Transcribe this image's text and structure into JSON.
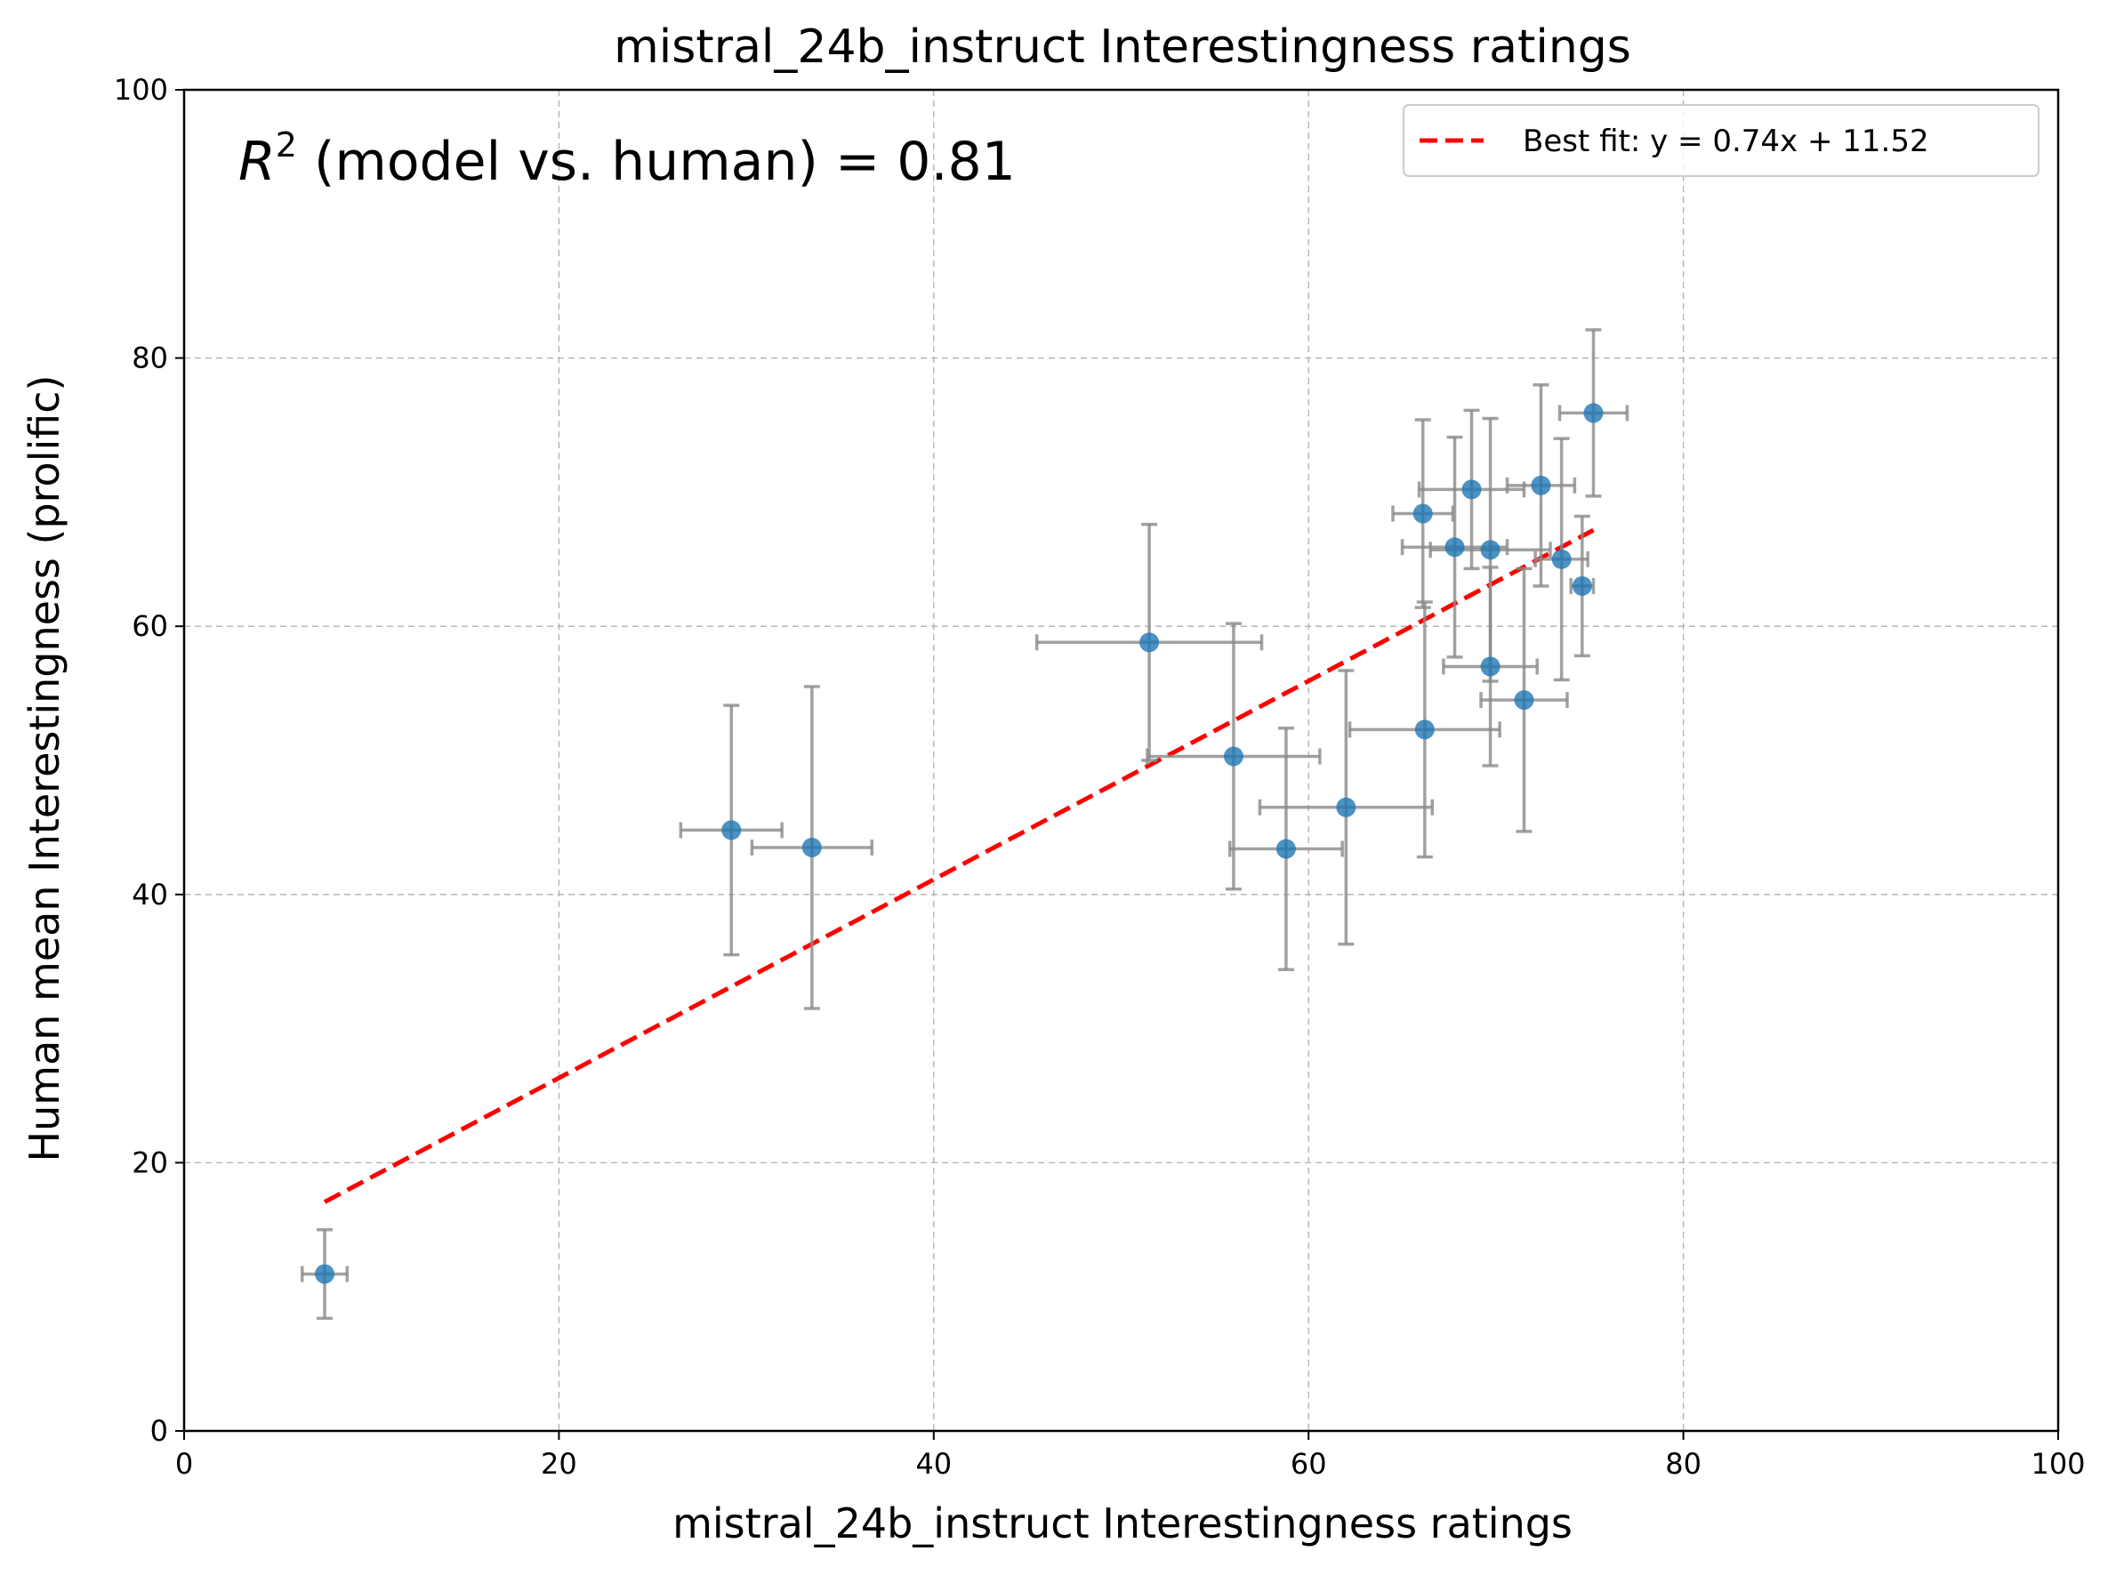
{
  "chart_data": {
    "type": "scatter",
    "title": "mistral_24b_instruct Interestingness ratings",
    "xlabel": "mistral_24b_instruct Interestingness ratings",
    "ylabel": "Human mean Interestingness (prolific)",
    "xlim": [
      0,
      100
    ],
    "ylim": [
      0,
      100
    ],
    "xticks": [
      "0",
      "20",
      "40",
      "60",
      "80",
      "100"
    ],
    "yticks": [
      "0",
      "20",
      "40",
      "60",
      "80",
      "100"
    ],
    "grid": true,
    "annotation": {
      "prefix": "R",
      "sup": "2",
      "suffix": " (model vs. human) = 0.81"
    },
    "legend": {
      "position": "top-right",
      "entries": [
        "Best fit: y = 0.74x + 11.52"
      ]
    },
    "colors": {
      "points": "#1f77b4",
      "error_bars": "#8a8a8a",
      "fit_line": "#ff0000"
    },
    "fit": {
      "slope": 0.74,
      "intercept": 11.52,
      "x_range": [
        7.5,
        75.2
      ]
    },
    "points": [
      {
        "x": 7.5,
        "y": 11.7,
        "xerr": 1.2,
        "yerr": 3.3
      },
      {
        "x": 29.2,
        "y": 44.8,
        "xerr": 2.7,
        "yerr": 9.3
      },
      {
        "x": 33.5,
        "y": 43.5,
        "xerr": 3.2,
        "yerr": 12.0
      },
      {
        "x": 51.5,
        "y": 58.8,
        "xerr": 6.0,
        "yerr": 8.8
      },
      {
        "x": 56.0,
        "y": 50.3,
        "xerr": 4.6,
        "yerr": 9.9
      },
      {
        "x": 58.8,
        "y": 43.4,
        "xerr": 3.0,
        "yerr": 9.0
      },
      {
        "x": 62.0,
        "y": 46.5,
        "xerr": 4.6,
        "yerr": 10.2
      },
      {
        "x": 66.2,
        "y": 52.3,
        "xerr": 4.0,
        "yerr": 9.5
      },
      {
        "x": 66.1,
        "y": 68.4,
        "xerr": 1.6,
        "yerr": 7.0
      },
      {
        "x": 67.8,
        "y": 65.9,
        "xerr": 2.8,
        "yerr": 8.2
      },
      {
        "x": 68.7,
        "y": 70.2,
        "xerr": 2.8,
        "yerr": 5.9
      },
      {
        "x": 69.7,
        "y": 65.7,
        "xerr": 3.2,
        "yerr": 9.8
      },
      {
        "x": 69.7,
        "y": 57.0,
        "xerr": 2.5,
        "yerr": 7.4
      },
      {
        "x": 71.5,
        "y": 54.5,
        "xerr": 2.3,
        "yerr": 9.8
      },
      {
        "x": 72.4,
        "y": 70.5,
        "xerr": 1.8,
        "yerr": 7.5
      },
      {
        "x": 73.5,
        "y": 65.0,
        "xerr": 1.4,
        "yerr": 9.0
      },
      {
        "x": 74.6,
        "y": 63.0,
        "xerr": 0.6,
        "yerr": 5.2
      },
      {
        "x": 75.2,
        "y": 75.9,
        "xerr": 1.8,
        "yerr": 6.2
      }
    ]
  }
}
